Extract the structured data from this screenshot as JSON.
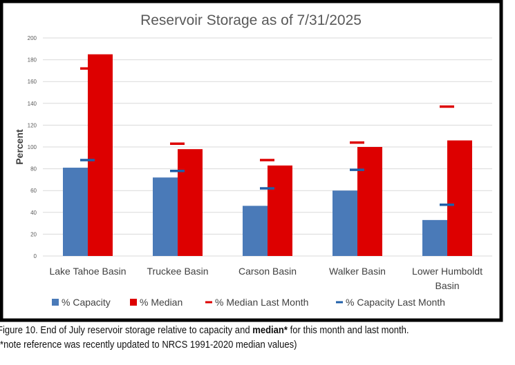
{
  "chart_data": {
    "type": "bar",
    "title": "Reservoir Storage as of 7/31/2025",
    "xlabel": "",
    "ylabel": "Percent",
    "ylim": [
      0,
      200
    ],
    "yticks": [
      0,
      20,
      40,
      60,
      80,
      100,
      120,
      140,
      160,
      180,
      200
    ],
    "grid": true,
    "legend_position": "bottom",
    "categories": [
      [
        "Lake Tahoe Basin"
      ],
      [
        "Truckee Basin"
      ],
      [
        "Carson Basin"
      ],
      [
        "Walker Basin"
      ],
      [
        "Lower Humboldt",
        "Basin"
      ]
    ],
    "series": [
      {
        "name": "% Capacity",
        "kind": "bar",
        "color": "#4a7ab8",
        "values": [
          81,
          72,
          46,
          60,
          33
        ]
      },
      {
        "name": "% Median",
        "kind": "bar",
        "color": "#dd0000",
        "values": [
          185,
          98,
          83,
          100,
          106
        ]
      },
      {
        "name": "% Median Last Month",
        "kind": "dash",
        "color": "#dd0000",
        "values": [
          172,
          103,
          88,
          104,
          137
        ]
      },
      {
        "name": "% Capacity Last Month",
        "kind": "dash",
        "color": "#1f5fa8",
        "values": [
          88,
          78,
          62,
          79,
          47
        ]
      }
    ]
  },
  "caption": {
    "line1_pre": "Figure 10.  End of July reservoir storage relative to capacity and ",
    "line1_bold": "median*",
    "line1_post": "  for this month and last month.",
    "line2": "*note reference was recently updated to NRCS 1991-2020 median values)"
  }
}
